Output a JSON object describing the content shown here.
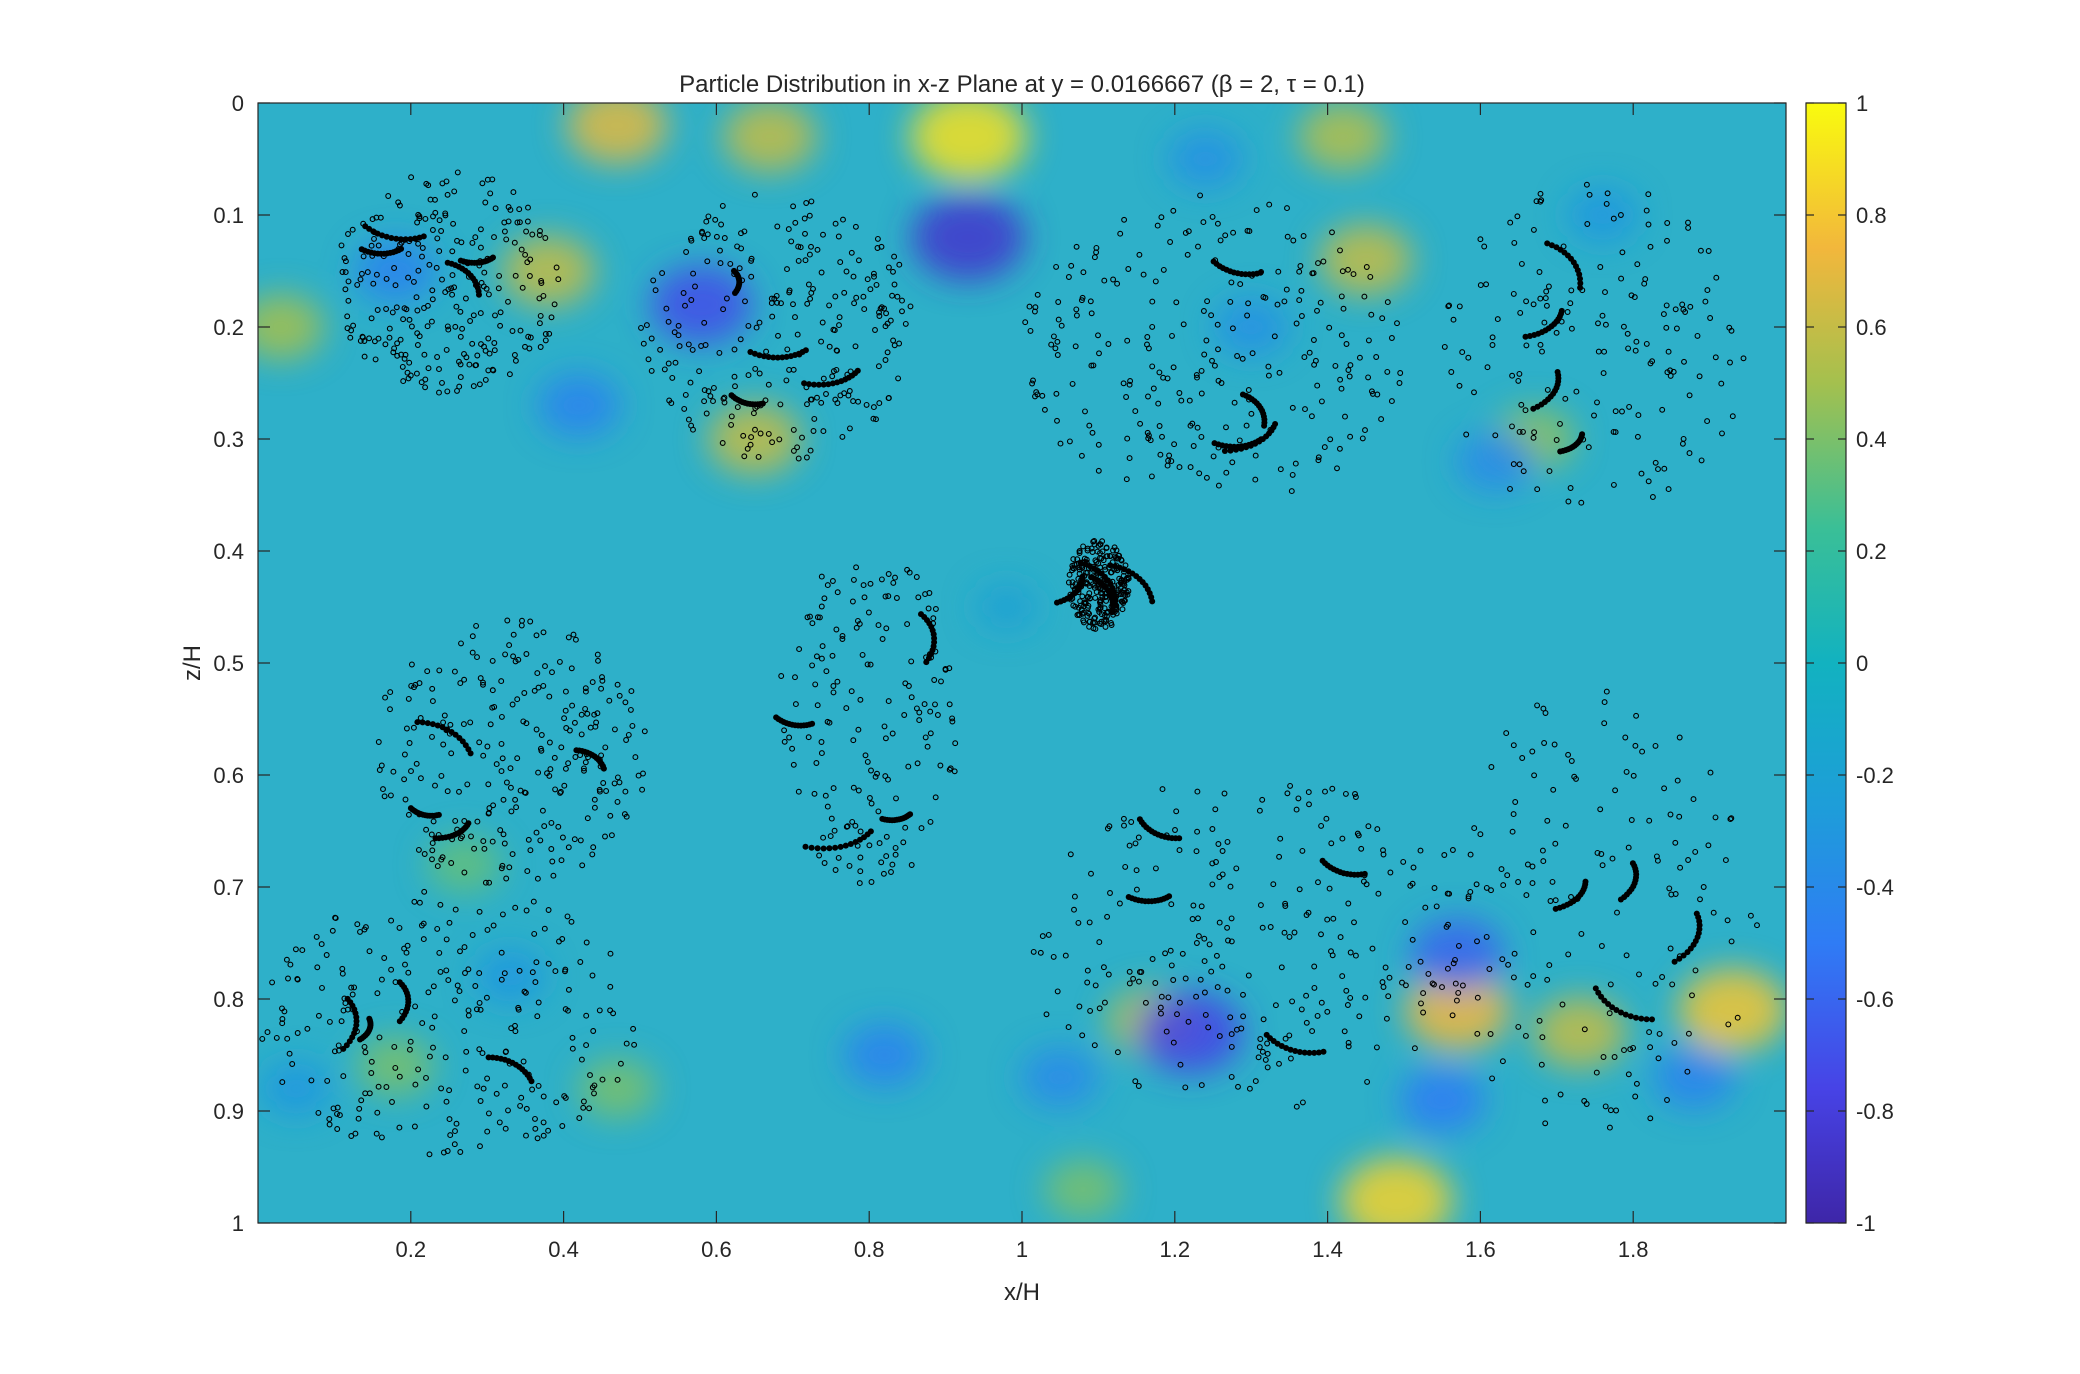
{
  "chart_data": {
    "type": "heatmap",
    "title": "Particle Distribution in x-z Plane at y = 0.0166667 (β = 2, τ = 0.1)",
    "xlabel": "x/H",
    "ylabel": "z/H",
    "xlim": [
      0,
      2
    ],
    "ylim": [
      0,
      1
    ],
    "y_reversed": true,
    "x_ticks": [
      0.2,
      0.4,
      0.6,
      0.8,
      1,
      1.2,
      1.4,
      1.6,
      1.8
    ],
    "x_tick_labels": [
      "0.2",
      "0.4",
      "0.6",
      "0.8",
      "1",
      "1.2",
      "1.4",
      "1.6",
      "1.8"
    ],
    "y_ticks": [
      0,
      0.1,
      0.2,
      0.3,
      0.4,
      0.5,
      0.6,
      0.7,
      0.8,
      0.9,
      1
    ],
    "y_tick_labels": [
      "0",
      "0.1",
      "0.2",
      "0.3",
      "0.4",
      "0.5",
      "0.6",
      "0.7",
      "0.8",
      "0.9",
      "1"
    ],
    "colorbar": {
      "colormap": "parula",
      "clim": [
        -1,
        1
      ],
      "ticks": [
        1,
        0.8,
        0.6,
        0.4,
        0.2,
        0,
        -0.2,
        -0.4,
        -0.6,
        -0.8,
        -1
      ],
      "tick_labels": [
        "1",
        "0.8",
        "0.6",
        "0.4",
        "0.2",
        "0",
        "-0.2",
        "-0.4",
        "-0.6",
        "-0.8",
        "-1"
      ]
    },
    "field_features": [
      {
        "x": 0.93,
        "z": 0.03,
        "value": 0.9
      },
      {
        "x": 0.47,
        "z": 0.02,
        "value": 0.7
      },
      {
        "x": 0.67,
        "z": 0.03,
        "value": 0.6
      },
      {
        "x": 1.49,
        "z": 0.98,
        "value": 0.85
      },
      {
        "x": 1.57,
        "z": 0.81,
        "value": 0.75
      },
      {
        "x": 1.93,
        "z": 0.81,
        "value": 0.8
      },
      {
        "x": 1.73,
        "z": 0.83,
        "value": 0.6
      },
      {
        "x": 1.17,
        "z": 0.82,
        "value": 0.55
      },
      {
        "x": 1.42,
        "z": 0.03,
        "value": 0.55
      },
      {
        "x": 1.45,
        "z": 0.14,
        "value": 0.6
      },
      {
        "x": 0.65,
        "z": 0.3,
        "value": 0.6
      },
      {
        "x": 0.38,
        "z": 0.15,
        "value": 0.6
      },
      {
        "x": 0.03,
        "z": 0.2,
        "value": 0.5
      },
      {
        "x": 1.67,
        "z": 0.3,
        "value": 0.45
      },
      {
        "x": 0.47,
        "z": 0.88,
        "value": 0.4
      },
      {
        "x": 0.18,
        "z": 0.86,
        "value": 0.4
      },
      {
        "x": 0.27,
        "z": 0.68,
        "value": 0.35
      },
      {
        "x": 1.08,
        "z": 0.97,
        "value": 0.4
      },
      {
        "x": 0.93,
        "z": 0.12,
        "value": -0.85
      },
      {
        "x": 0.58,
        "z": 0.18,
        "value": -0.7
      },
      {
        "x": 1.22,
        "z": 0.83,
        "value": -0.75
      },
      {
        "x": 1.57,
        "z": 0.76,
        "value": -0.6
      },
      {
        "x": 1.55,
        "z": 0.89,
        "value": -0.5
      },
      {
        "x": 0.18,
        "z": 0.15,
        "value": -0.45
      },
      {
        "x": 0.42,
        "z": 0.27,
        "value": -0.45
      },
      {
        "x": 1.62,
        "z": 0.32,
        "value": -0.4
      },
      {
        "x": 0.82,
        "z": 0.85,
        "value": -0.45
      },
      {
        "x": 1.05,
        "z": 0.87,
        "value": -0.4
      },
      {
        "x": 1.88,
        "z": 0.87,
        "value": -0.45
      },
      {
        "x": 1.24,
        "z": 0.05,
        "value": -0.35
      },
      {
        "x": 0.05,
        "z": 0.88,
        "value": -0.3
      },
      {
        "x": 1.3,
        "z": 0.2,
        "value": -0.35
      },
      {
        "x": 0.33,
        "z": 0.78,
        "value": -0.3
      },
      {
        "x": 0.98,
        "z": 0.45,
        "value": -0.2
      },
      {
        "x": 1.76,
        "z": 0.1,
        "value": -0.3
      }
    ],
    "particle_clusters": [
      {
        "x": 0.25,
        "z": 0.16,
        "rx": 0.15,
        "rz": 0.1,
        "density": "high"
      },
      {
        "x": 0.68,
        "z": 0.2,
        "rx": 0.18,
        "rz": 0.12,
        "density": "high"
      },
      {
        "x": 1.25,
        "z": 0.22,
        "rx": 0.25,
        "rz": 0.14,
        "density": "high"
      },
      {
        "x": 1.75,
        "z": 0.22,
        "rx": 0.2,
        "rz": 0.15,
        "density": "medium"
      },
      {
        "x": 0.33,
        "z": 0.58,
        "rx": 0.18,
        "rz": 0.12,
        "density": "high"
      },
      {
        "x": 0.25,
        "z": 0.82,
        "rx": 0.25,
        "rz": 0.12,
        "density": "high"
      },
      {
        "x": 1.3,
        "z": 0.75,
        "rx": 0.3,
        "rz": 0.15,
        "density": "high"
      },
      {
        "x": 1.75,
        "z": 0.72,
        "rx": 0.22,
        "rz": 0.2,
        "density": "medium"
      },
      {
        "x": 0.8,
        "z": 0.55,
        "rx": 0.12,
        "rz": 0.15,
        "density": "medium"
      },
      {
        "x": 1.1,
        "z": 0.43,
        "rx": 0.04,
        "rz": 0.04,
        "density": "high"
      }
    ]
  }
}
